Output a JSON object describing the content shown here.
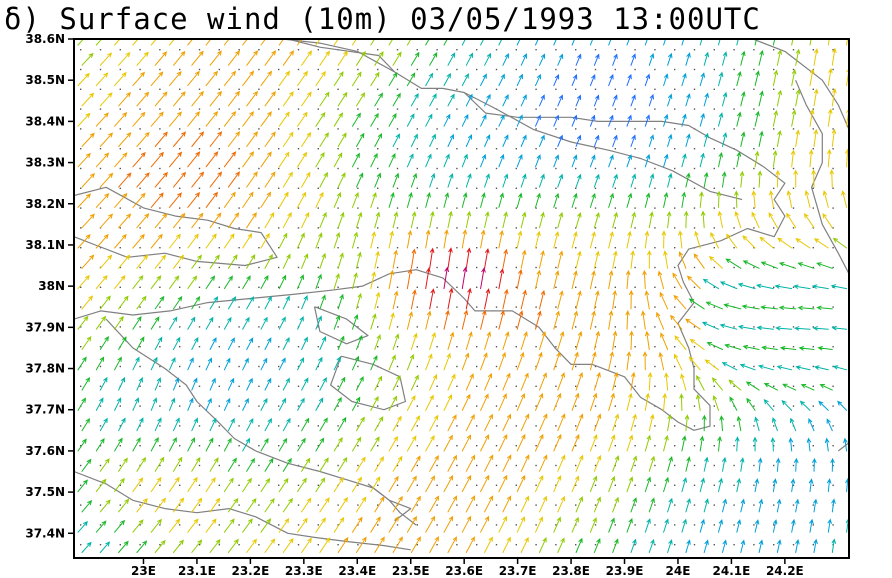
{
  "title": "δ) Surface wind (10m) 03/05/1993 13:00UTC",
  "map": {
    "lon_range": [
      22.87,
      24.32
    ],
    "lat_range": [
      37.34,
      38.6
    ],
    "lon_ticks": [
      {
        "value": 23.0,
        "label": "23E"
      },
      {
        "value": 23.1,
        "label": "23.1E"
      },
      {
        "value": 23.2,
        "label": "23.2E"
      },
      {
        "value": 23.3,
        "label": "23.3E"
      },
      {
        "value": 23.4,
        "label": "23.4E"
      },
      {
        "value": 23.5,
        "label": "23.5E"
      },
      {
        "value": 23.6,
        "label": "23.6E"
      },
      {
        "value": 23.7,
        "label": "23.7E"
      },
      {
        "value": 23.8,
        "label": "23.8E"
      },
      {
        "value": 23.9,
        "label": "23.9E"
      },
      {
        "value": 24.0,
        "label": "24E"
      },
      {
        "value": 24.1,
        "label": "24.1E"
      },
      {
        "value": 24.2,
        "label": "24.2E"
      }
    ],
    "lat_ticks": [
      {
        "value": 38.6,
        "label": "38.6N"
      },
      {
        "value": 38.5,
        "label": "38.5N"
      },
      {
        "value": 38.4,
        "label": "38.4N"
      },
      {
        "value": 38.3,
        "label": "38.3N"
      },
      {
        "value": 38.2,
        "label": "38.2N"
      },
      {
        "value": 38.1,
        "label": "38.1N"
      },
      {
        "value": 38.0,
        "label": "38N"
      },
      {
        "value": 37.9,
        "label": "37.9N"
      },
      {
        "value": 37.8,
        "label": "37.8N"
      },
      {
        "value": 37.7,
        "label": "37.7N"
      },
      {
        "value": 37.6,
        "label": "37.6N"
      },
      {
        "value": 37.5,
        "label": "37.5N"
      },
      {
        "value": 37.4,
        "label": "37.4N"
      }
    ],
    "coastline_color": "#808080",
    "grid_dot_color": "#555555",
    "wind_colors": [
      "#1e6eff",
      "#00a0d8",
      "#00b4a8",
      "#18b828",
      "#90cc00",
      "#e8c800",
      "#f0a000",
      "#f06a00",
      "#e01818",
      "#c0006c",
      "#6c1890"
    ],
    "coastlines": [
      [
        [
          22.87,
          38.22
        ],
        [
          22.93,
          38.24
        ],
        [
          23.0,
          38.19
        ],
        [
          23.06,
          38.17
        ],
        [
          23.12,
          38.16
        ],
        [
          23.17,
          38.14
        ],
        [
          23.22,
          38.13
        ],
        [
          23.25,
          38.07
        ],
        [
          23.19,
          38.05
        ],
        [
          23.1,
          38.06
        ],
        [
          23.04,
          38.08
        ],
        [
          22.97,
          38.07
        ],
        [
          22.91,
          38.1
        ],
        [
          22.87,
          38.12
        ]
      ],
      [
        [
          22.87,
          37.92
        ],
        [
          22.92,
          37.94
        ],
        [
          22.98,
          37.93
        ],
        [
          23.05,
          37.94
        ],
        [
          23.12,
          37.96
        ],
        [
          23.2,
          37.97
        ],
        [
          23.28,
          37.98
        ],
        [
          23.35,
          37.99
        ],
        [
          23.41,
          38.0
        ],
        [
          23.46,
          38.03
        ],
        [
          23.51,
          38.04
        ],
        [
          23.56,
          38.02
        ],
        [
          23.6,
          37.97
        ],
        [
          23.62,
          37.94
        ],
        [
          23.69,
          37.94
        ],
        [
          23.74,
          37.9
        ],
        [
          23.77,
          37.85
        ],
        [
          23.8,
          37.81
        ],
        [
          23.84,
          37.81
        ],
        [
          23.9,
          37.78
        ],
        [
          23.93,
          37.73
        ],
        [
          23.97,
          37.7
        ],
        [
          24.0,
          37.67
        ],
        [
          24.03,
          37.65
        ],
        [
          24.06,
          37.66
        ],
        [
          24.06,
          37.71
        ],
        [
          24.03,
          37.75
        ],
        [
          24.03,
          37.8
        ],
        [
          24.02,
          37.85
        ],
        [
          24.0,
          37.91
        ],
        [
          24.03,
          37.96
        ],
        [
          24.01,
          38.01
        ],
        [
          24.0,
          38.05
        ],
        [
          24.02,
          38.09
        ],
        [
          24.08,
          38.11
        ],
        [
          24.13,
          38.14
        ],
        [
          24.18,
          38.12
        ],
        [
          24.2,
          38.17
        ],
        [
          24.18,
          38.21
        ],
        [
          24.2,
          38.25
        ],
        [
          24.16,
          38.29
        ],
        [
          24.11,
          38.33
        ],
        [
          24.06,
          38.36
        ],
        [
          24.02,
          38.39
        ],
        [
          23.97,
          38.4
        ],
        [
          23.93,
          38.4
        ],
        [
          23.89,
          38.4
        ],
        [
          23.85,
          38.4
        ],
        [
          23.8,
          38.41
        ],
        [
          23.75,
          38.41
        ],
        [
          23.7,
          38.41
        ],
        [
          23.64,
          38.42
        ],
        [
          23.6,
          38.47
        ],
        [
          23.56,
          38.48
        ],
        [
          23.52,
          38.48
        ],
        [
          23.47,
          38.52
        ],
        [
          23.4,
          38.57
        ],
        [
          23.33,
          38.59
        ],
        [
          23.26,
          38.6
        ]
      ],
      [
        [
          23.27,
          38.6
        ],
        [
          23.33,
          38.58
        ],
        [
          23.44,
          38.56
        ],
        [
          23.47,
          38.52
        ]
      ],
      [
        [
          23.6,
          38.47
        ],
        [
          23.66,
          38.43
        ],
        [
          23.73,
          38.38
        ],
        [
          23.8,
          38.35
        ],
        [
          23.87,
          38.33
        ],
        [
          23.93,
          38.31
        ],
        [
          23.99,
          38.28
        ],
        [
          24.06,
          38.23
        ],
        [
          24.12,
          38.21
        ]
      ],
      [
        [
          24.14,
          38.6
        ],
        [
          24.2,
          38.57
        ],
        [
          24.27,
          38.5
        ],
        [
          24.3,
          38.44
        ],
        [
          24.32,
          38.38
        ]
      ],
      [
        [
          24.22,
          38.5
        ],
        [
          24.24,
          38.44
        ],
        [
          24.27,
          38.37
        ],
        [
          24.27,
          38.3
        ],
        [
          24.25,
          38.24
        ],
        [
          24.27,
          38.15
        ],
        [
          24.3,
          38.08
        ],
        [
          24.32,
          38.03
        ]
      ],
      [
        [
          22.93,
          37.92
        ],
        [
          22.98,
          37.85
        ],
        [
          23.04,
          37.8
        ],
        [
          23.08,
          37.76
        ],
        [
          23.1,
          37.72
        ],
        [
          23.14,
          37.67
        ],
        [
          23.17,
          37.63
        ],
        [
          23.21,
          37.6
        ],
        [
          23.27,
          37.57
        ],
        [
          23.33,
          37.55
        ],
        [
          23.38,
          37.53
        ],
        [
          23.43,
          37.51
        ],
        [
          23.46,
          37.48
        ],
        [
          23.48,
          37.45
        ],
        [
          23.51,
          37.42
        ]
      ],
      [
        [
          22.87,
          37.55
        ],
        [
          22.93,
          37.52
        ],
        [
          22.98,
          37.48
        ],
        [
          23.04,
          37.46
        ],
        [
          23.1,
          37.45
        ],
        [
          23.16,
          37.46
        ],
        [
          23.21,
          37.44
        ],
        [
          23.27,
          37.4
        ],
        [
          23.32,
          37.39
        ],
        [
          23.38,
          37.38
        ],
        [
          23.45,
          37.37
        ],
        [
          23.5,
          37.36
        ]
      ],
      [
        [
          23.37,
          37.83
        ],
        [
          23.43,
          37.81
        ],
        [
          23.48,
          37.78
        ],
        [
          23.49,
          37.72
        ],
        [
          23.45,
          37.7
        ],
        [
          23.39,
          37.72
        ],
        [
          23.35,
          37.76
        ],
        [
          23.37,
          37.83
        ]
      ],
      [
        [
          23.32,
          37.95
        ],
        [
          23.38,
          37.92
        ],
        [
          23.42,
          37.88
        ],
        [
          23.38,
          37.86
        ],
        [
          23.33,
          37.89
        ],
        [
          23.32,
          37.95
        ]
      ],
      [
        [
          23.42,
          37.52
        ],
        [
          23.46,
          37.48
        ],
        [
          23.5,
          37.46
        ],
        [
          23.47,
          37.43
        ]
      ],
      [
        [
          24.3,
          37.6
        ],
        [
          24.32,
          37.62
        ]
      ]
    ]
  }
}
